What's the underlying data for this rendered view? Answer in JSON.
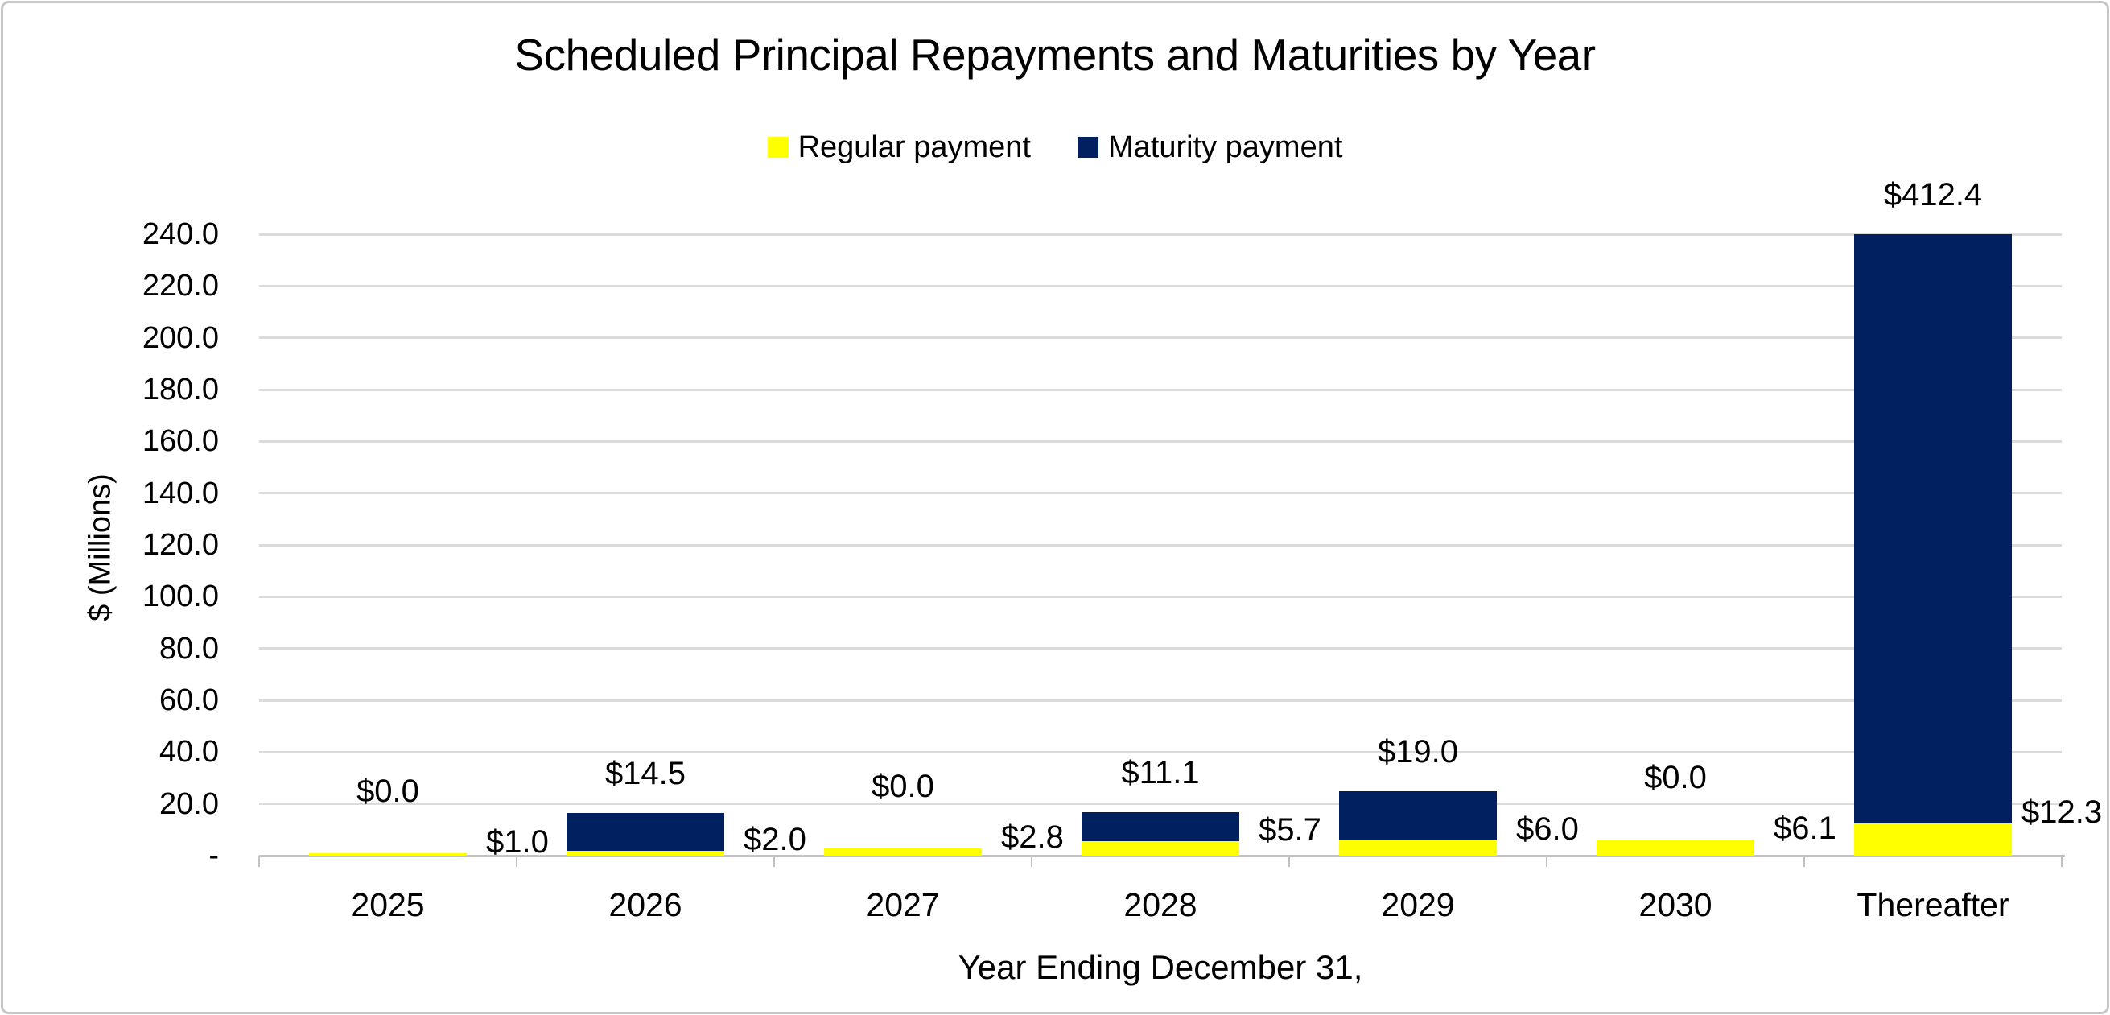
{
  "chart_data": {
    "type": "bar",
    "stacked": true,
    "title": "Scheduled Principal Repayments and Maturities by Year",
    "xlabel": "Year Ending December 31,",
    "ylabel": "$ (Millions)",
    "categories": [
      "2025",
      "2026",
      "2027",
      "2028",
      "2029",
      "2030",
      "Thereafter"
    ],
    "series": [
      {
        "name": "Regular payment",
        "color": "#FFFF00",
        "values": [
          1.0,
          2.0,
          2.8,
          5.7,
          6.0,
          6.1,
          12.3
        ],
        "data_labels": [
          "$1.0",
          "$2.0",
          "$2.8",
          "$5.7",
          "$6.0",
          "$6.1",
          "$12.3"
        ]
      },
      {
        "name": "Maturity payment",
        "color": "#002060",
        "values": [
          0.0,
          14.5,
          0.0,
          11.1,
          19.0,
          0.0,
          412.4
        ],
        "data_labels": [
          "$0.0",
          "$14.5",
          "$0.0",
          "$11.1",
          "$19.0",
          "$0.0",
          "$412.4"
        ]
      }
    ],
    "ylim": [
      0,
      240
    ],
    "ytick_step": 20,
    "ytick_labels": [
      "-",
      "20.0",
      "40.0",
      "60.0",
      "80.0",
      "100.0",
      "120.0",
      "140.0",
      "160.0",
      "180.0",
      "200.0",
      "220.0",
      "240.0"
    ],
    "grid": true,
    "legend_position": "top",
    "bars_clipped_at_ymax": [
      "Thereafter"
    ]
  },
  "colors": {
    "regular_payment": "#FFFF00",
    "maturity_payment": "#002060",
    "gridline": "#dbdbdb",
    "axis_line": "#c3c3c3",
    "text": "#000000",
    "chart_border": "#c9c7c5",
    "background": "#FFFFFF"
  }
}
